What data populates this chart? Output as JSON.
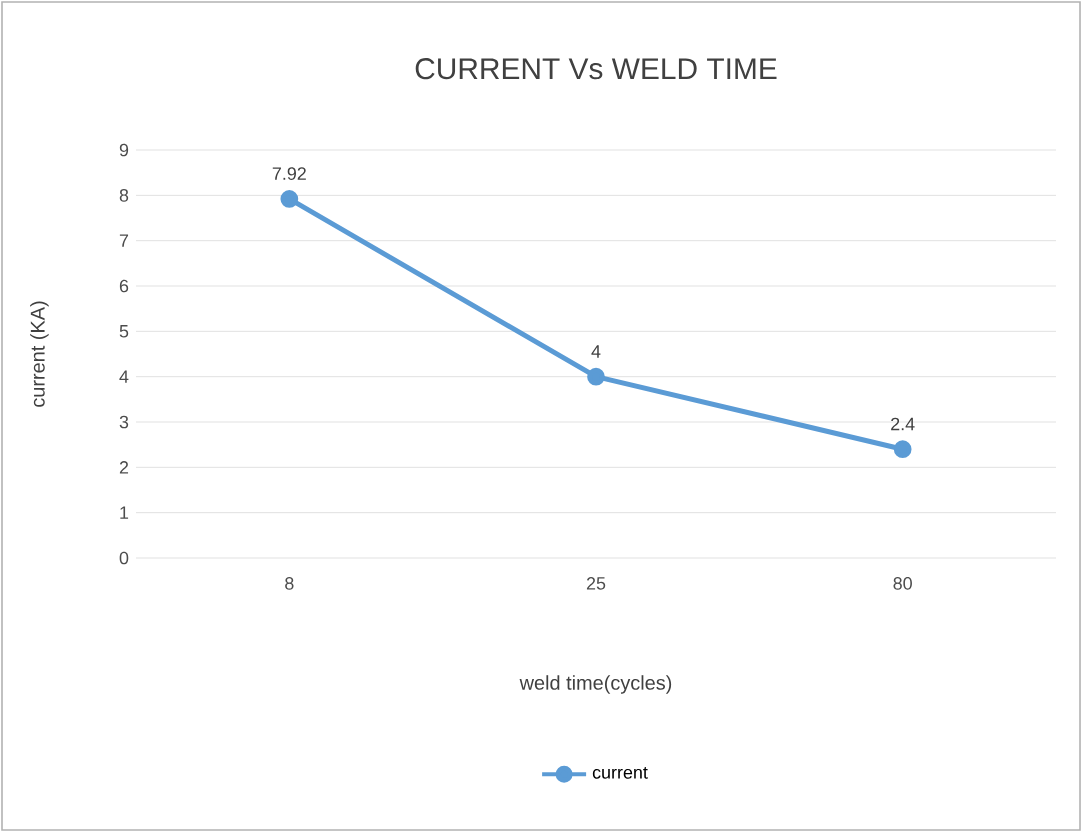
{
  "chart_data": {
    "type": "line",
    "title": "CURRENT Vs WELD TIME",
    "xlabel": "weld time(cycles)",
    "ylabel": "current (KA)",
    "categories": [
      "8",
      "25",
      "80"
    ],
    "series": [
      {
        "name": "current",
        "color": "#5b9bd5",
        "values": [
          7.92,
          4,
          2.4
        ],
        "value_labels": [
          "7.92",
          "4",
          "2.4"
        ]
      }
    ],
    "ylim": [
      0,
      9
    ],
    "yticks": [
      0,
      1,
      2,
      3,
      4,
      5,
      6,
      7,
      8,
      9
    ],
    "grid": "y",
    "legend": "bottom",
    "marker": "circle",
    "line_style": "solid"
  }
}
